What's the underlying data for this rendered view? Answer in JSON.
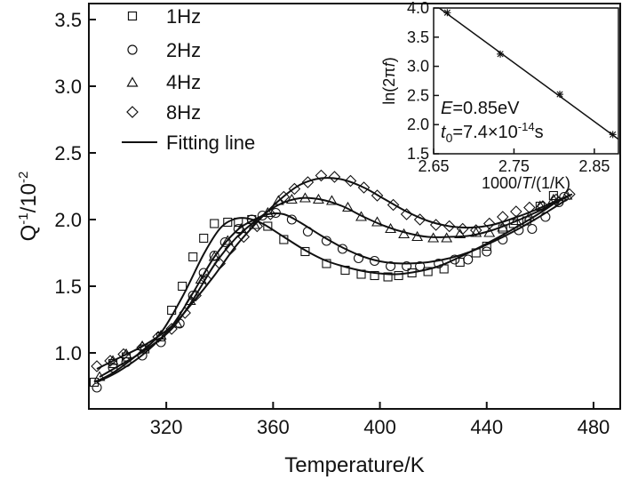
{
  "chart_data": [
    {
      "type": "scatter",
      "xlabel": "Temperature/K",
      "ylabel_base": "Q",
      "ylabel_sup1": "-1",
      "ylabel_mid": "/10",
      "ylabel_sup2": "-2",
      "xlim": [
        291,
        490
      ],
      "ylim": [
        0.58,
        3.62
      ],
      "xticks": [
        320,
        360,
        400,
        440,
        480
      ],
      "yticks": [
        1.0,
        1.5,
        2.0,
        2.5,
        3.0,
        3.5
      ],
      "ytick_labels": [
        "1.0",
        "1.5",
        "2.0",
        "2.5",
        "3.0",
        "3.5"
      ],
      "legend_position": "top-left",
      "fit_legend_label": "Fitting line",
      "series": [
        {
          "name": "1Hz",
          "marker": "square",
          "points": [
            [
              293,
              0.78
            ],
            [
              300,
              0.92
            ],
            [
              305,
              0.97
            ],
            [
              312,
              1.03
            ],
            [
              318,
              1.12
            ],
            [
              322,
              1.32
            ],
            [
              326,
              1.5
            ],
            [
              330,
              1.72
            ],
            [
              334,
              1.86
            ],
            [
              338,
              1.97
            ],
            [
              343,
              1.98
            ],
            [
              347,
              1.98
            ],
            [
              352,
              2.0
            ],
            [
              358,
              1.95
            ],
            [
              364,
              1.85
            ],
            [
              372,
              1.76
            ],
            [
              380,
              1.67
            ],
            [
              387,
              1.62
            ],
            [
              393,
              1.59
            ],
            [
              398,
              1.58
            ],
            [
              403,
              1.57
            ],
            [
              407,
              1.58
            ],
            [
              412,
              1.6
            ],
            [
              418,
              1.61
            ],
            [
              424,
              1.63
            ],
            [
              430,
              1.68
            ],
            [
              436,
              1.75
            ],
            [
              440,
              1.8
            ],
            [
              446,
              1.93
            ],
            [
              450,
              1.97
            ],
            [
              455,
              1.99
            ],
            [
              460,
              2.1
            ],
            [
              465,
              2.18
            ]
          ],
          "fit": [
            [
              293,
              0.78
            ],
            [
              300,
              0.85
            ],
            [
              310,
              1.0
            ],
            [
              318,
              1.15
            ],
            [
              326,
              1.42
            ],
            [
              334,
              1.74
            ],
            [
              340,
              1.93
            ],
            [
              345,
              2.0
            ],
            [
              350,
              2.01
            ],
            [
              356,
              1.97
            ],
            [
              364,
              1.87
            ],
            [
              372,
              1.77
            ],
            [
              380,
              1.69
            ],
            [
              390,
              1.63
            ],
            [
              398,
              1.6
            ],
            [
              406,
              1.59
            ],
            [
              414,
              1.61
            ],
            [
              422,
              1.65
            ],
            [
              430,
              1.72
            ],
            [
              440,
              1.82
            ],
            [
              450,
              1.93
            ],
            [
              460,
              2.05
            ],
            [
              468,
              2.16
            ]
          ]
        },
        {
          "name": "2Hz",
          "marker": "circle",
          "points": [
            [
              294,
              0.74
            ],
            [
              300,
              0.89
            ],
            [
              305,
              0.93
            ],
            [
              311,
              0.98
            ],
            [
              318,
              1.08
            ],
            [
              325,
              1.22
            ],
            [
              330,
              1.43
            ],
            [
              334,
              1.6
            ],
            [
              338,
              1.73
            ],
            [
              342,
              1.83
            ],
            [
              347,
              1.93
            ],
            [
              352,
              2.0
            ],
            [
              356,
              2.03
            ],
            [
              361,
              2.05
            ],
            [
              367,
              2.0
            ],
            [
              373,
              1.91
            ],
            [
              380,
              1.84
            ],
            [
              386,
              1.78
            ],
            [
              392,
              1.71
            ],
            [
              398,
              1.69
            ],
            [
              404,
              1.65
            ],
            [
              410,
              1.65
            ],
            [
              415,
              1.65
            ],
            [
              422,
              1.67
            ],
            [
              428,
              1.7
            ],
            [
              433,
              1.7
            ],
            [
              440,
              1.76
            ],
            [
              446,
              1.85
            ],
            [
              452,
              1.92
            ],
            [
              457,
              1.93
            ],
            [
              462,
              2.02
            ],
            [
              467,
              2.13
            ],
            [
              469,
              2.17
            ]
          ],
          "fit": [
            [
              294,
              0.78
            ],
            [
              302,
              0.86
            ],
            [
              312,
              1.0
            ],
            [
              322,
              1.2
            ],
            [
              330,
              1.45
            ],
            [
              338,
              1.72
            ],
            [
              346,
              1.91
            ],
            [
              352,
              1.99
            ],
            [
              358,
              2.04
            ],
            [
              364,
              2.04
            ],
            [
              370,
              1.98
            ],
            [
              378,
              1.88
            ],
            [
              386,
              1.79
            ],
            [
              394,
              1.72
            ],
            [
              402,
              1.68
            ],
            [
              410,
              1.67
            ],
            [
              418,
              1.68
            ],
            [
              426,
              1.71
            ],
            [
              434,
              1.76
            ],
            [
              442,
              1.83
            ],
            [
              450,
              1.91
            ],
            [
              458,
              2.0
            ],
            [
              466,
              2.1
            ],
            [
              470,
              2.15
            ]
          ]
        },
        {
          "name": "4Hz",
          "marker": "triangle",
          "points": [
            [
              295,
              0.82
            ],
            [
              300,
              0.94
            ],
            [
              305,
              0.99
            ],
            [
              311,
              1.05
            ],
            [
              318,
              1.13
            ],
            [
              324,
              1.22
            ],
            [
              329,
              1.39
            ],
            [
              333,
              1.55
            ],
            [
              338,
              1.72
            ],
            [
              343,
              1.84
            ],
            [
              348,
              1.93
            ],
            [
              353,
              1.96
            ],
            [
              358,
              2.05
            ],
            [
              362,
              2.14
            ],
            [
              367,
              2.15
            ],
            [
              372,
              2.16
            ],
            [
              377,
              2.15
            ],
            [
              382,
              2.14
            ],
            [
              388,
              2.09
            ],
            [
              393,
              2.02
            ],
            [
              399,
              1.98
            ],
            [
              404,
              1.93
            ],
            [
              409,
              1.89
            ],
            [
              414,
              1.87
            ],
            [
              420,
              1.86
            ],
            [
              425,
              1.86
            ],
            [
              430,
              1.89
            ],
            [
              436,
              1.9
            ],
            [
              441,
              1.9
            ],
            [
              446,
              1.94
            ],
            [
              451,
              1.99
            ],
            [
              456,
              2.02
            ],
            [
              460,
              2.1
            ],
            [
              465,
              2.15
            ],
            [
              470,
              2.18
            ]
          ],
          "fit": [
            [
              295,
              0.82
            ],
            [
              302,
              0.9
            ],
            [
              312,
              1.02
            ],
            [
              322,
              1.18
            ],
            [
              330,
              1.4
            ],
            [
              338,
              1.66
            ],
            [
              346,
              1.86
            ],
            [
              354,
              2.0
            ],
            [
              362,
              2.11
            ],
            [
              370,
              2.16
            ],
            [
              378,
              2.15
            ],
            [
              386,
              2.1
            ],
            [
              394,
              2.02
            ],
            [
              402,
              1.95
            ],
            [
              410,
              1.9
            ],
            [
              418,
              1.87
            ],
            [
              426,
              1.87
            ],
            [
              434,
              1.88
            ],
            [
              442,
              1.92
            ],
            [
              450,
              1.98
            ],
            [
              458,
              2.05
            ],
            [
              466,
              2.13
            ],
            [
              470,
              2.17
            ]
          ]
        },
        {
          "name": "8Hz",
          "marker": "diamond",
          "points": [
            [
              294,
              0.9
            ],
            [
              299,
              0.94
            ],
            [
              304,
              0.99
            ],
            [
              311,
              1.04
            ],
            [
              317,
              1.12
            ],
            [
              322,
              1.18
            ],
            [
              327,
              1.3
            ],
            [
              331,
              1.43
            ],
            [
              335,
              1.55
            ],
            [
              340,
              1.67
            ],
            [
              344,
              1.78
            ],
            [
              349,
              1.87
            ],
            [
              354,
              1.95
            ],
            [
              359,
              2.04
            ],
            [
              364,
              2.17
            ],
            [
              368,
              2.23
            ],
            [
              373,
              2.28
            ],
            [
              378,
              2.33
            ],
            [
              383,
              2.32
            ],
            [
              389,
              2.29
            ],
            [
              394,
              2.24
            ],
            [
              399,
              2.18
            ],
            [
              405,
              2.11
            ],
            [
              410,
              2.04
            ],
            [
              415,
              2.0
            ],
            [
              421,
              1.96
            ],
            [
              426,
              1.95
            ],
            [
              431,
              1.93
            ],
            [
              436,
              1.92
            ],
            [
              441,
              1.97
            ],
            [
              446,
              2.02
            ],
            [
              451,
              2.06
            ],
            [
              456,
              2.09
            ],
            [
              461,
              2.1
            ],
            [
              466,
              2.15
            ],
            [
              471,
              2.19
            ]
          ],
          "fit": [
            [
              294,
              0.88
            ],
            [
              302,
              0.96
            ],
            [
              312,
              1.06
            ],
            [
              322,
              1.2
            ],
            [
              330,
              1.38
            ],
            [
              338,
              1.58
            ],
            [
              346,
              1.8
            ],
            [
              354,
              1.98
            ],
            [
              362,
              2.14
            ],
            [
              370,
              2.26
            ],
            [
              378,
              2.31
            ],
            [
              386,
              2.3
            ],
            [
              394,
              2.24
            ],
            [
              402,
              2.15
            ],
            [
              410,
              2.06
            ],
            [
              418,
              1.99
            ],
            [
              426,
              1.95
            ],
            [
              434,
              1.94
            ],
            [
              442,
              1.96
            ],
            [
              450,
              2.01
            ],
            [
              458,
              2.07
            ],
            [
              466,
              2.14
            ],
            [
              472,
              2.19
            ]
          ]
        }
      ]
    },
    {
      "type": "scatter",
      "inset": true,
      "xlabel_pre": "1000/",
      "xlabel_var": "T",
      "xlabel_post": "/(1/K)",
      "ylabel_pre": "ln(2π",
      "ylabel_var": "f",
      "ylabel_post": ")",
      "xlim": [
        2.65,
        2.88
      ],
      "ylim": [
        1.5,
        4.0
      ],
      "xticks": [
        2.65,
        2.75,
        2.85
      ],
      "xtick_labels": [
        "2.65",
        "2.75",
        "2.85"
      ],
      "yticks": [
        1.5,
        2.0,
        2.5,
        3.0,
        3.5,
        4.0
      ],
      "ytick_labels": [
        "1.5",
        "2.0",
        "2.5",
        "3.0",
        "3.5",
        "4.0"
      ],
      "points": [
        [
          2.667,
          3.92
        ],
        [
          2.733,
          3.21
        ],
        [
          2.807,
          2.52
        ],
        [
          2.873,
          1.83
        ]
      ],
      "fit_line": [
        [
          2.65,
          4.07
        ],
        [
          2.88,
          1.75
        ]
      ],
      "annotation_E_var": "E",
      "annotation_E_value": "=0.85eV",
      "annotation_t_var": "t",
      "annotation_t_sub": "0",
      "annotation_t_value": "=7.4×10",
      "annotation_t_exp": "-14",
      "annotation_t_unit": "s"
    }
  ],
  "style": {
    "ink": "#111111",
    "background": "#ffffff"
  }
}
